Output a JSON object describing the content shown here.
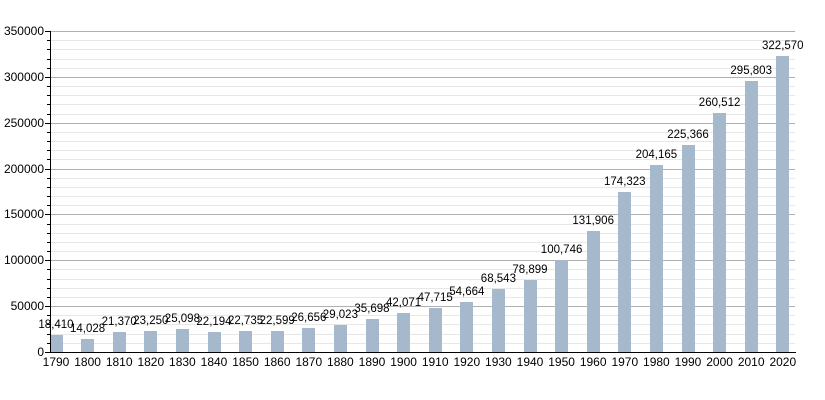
{
  "chart_data": {
    "type": "bar",
    "title": "",
    "xlabel": "",
    "ylabel": "",
    "categories": [
      "1790",
      "1800",
      "1810",
      "1820",
      "1830",
      "1840",
      "1850",
      "1860",
      "1870",
      "1880",
      "1890",
      "1900",
      "1910",
      "1920",
      "1930",
      "1940",
      "1950",
      "1960",
      "1970",
      "1980",
      "1990",
      "2000",
      "2010",
      "2020"
    ],
    "values": [
      18410,
      14028,
      21370,
      23250,
      25098,
      22194,
      22735,
      22599,
      26656,
      29023,
      35698,
      42071,
      47715,
      54664,
      68543,
      78899,
      100746,
      131906,
      174323,
      204165,
      225366,
      260512,
      295803,
      322570
    ],
    "value_labels": [
      "18,410",
      "14,028",
      "21,370",
      "23,250",
      "25,098",
      "22,194",
      "22,735",
      "22,599",
      "26,656",
      "29,023",
      "35,698",
      "42,071",
      "47,715",
      "54,664",
      "68,543",
      "78,899",
      "100,746",
      "131,906",
      "174,323",
      "204,165",
      "225,366",
      "260,512",
      "295,803",
      "322,570"
    ],
    "ylim": [
      0,
      350000
    ],
    "y_major_step": 50000,
    "y_minor_step": 10000,
    "y_tick_labels": [
      "0",
      "50000",
      "100000",
      "150000",
      "200000",
      "250000",
      "300000",
      "350000"
    ],
    "grid": "horizontal major and minor gridlines on",
    "legend": "none",
    "colors": {
      "bar_fill": "#a6b8cc",
      "major_grid": "#b0b0b0",
      "minor_grid": "#e7e7e7",
      "axis": "#000000",
      "text": "#000000",
      "background": "#ffffff"
    }
  }
}
